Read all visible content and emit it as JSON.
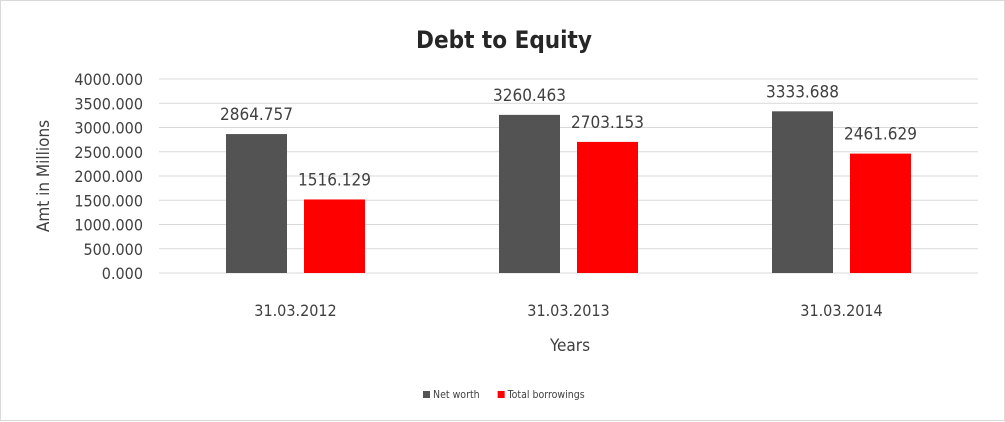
{
  "chart_data": {
    "type": "bar",
    "title": "Debt to Equity",
    "xlabel": "Years",
    "ylabel": "Amt in Millions",
    "categories": [
      "31.03.2012",
      "31.03.2013",
      "31.03.2014"
    ],
    "series": [
      {
        "name": "Net worth",
        "color": "#535353",
        "values": [
          2864.757,
          3260.463,
          3333.688
        ],
        "labels": [
          "2864.757",
          "3260.463",
          "3333.688"
        ]
      },
      {
        "name": "Total borrowings",
        "color": "#ff0000",
        "values": [
          1516.129,
          2703.153,
          2461.629
        ],
        "labels": [
          "1516.129",
          "2703.153",
          "2461.629"
        ]
      }
    ],
    "ylim": [
      0,
      4000
    ],
    "yticks": [
      0,
      500,
      1000,
      1500,
      2000,
      2500,
      3000,
      3500,
      4000
    ],
    "ytick_labels": [
      "0.000",
      "500.000",
      "1000.000",
      "1500.000",
      "2000.000",
      "2500.000",
      "3000.000",
      "3500.000",
      "4000.000"
    ],
    "grid": true,
    "legend_position": "bottom"
  }
}
